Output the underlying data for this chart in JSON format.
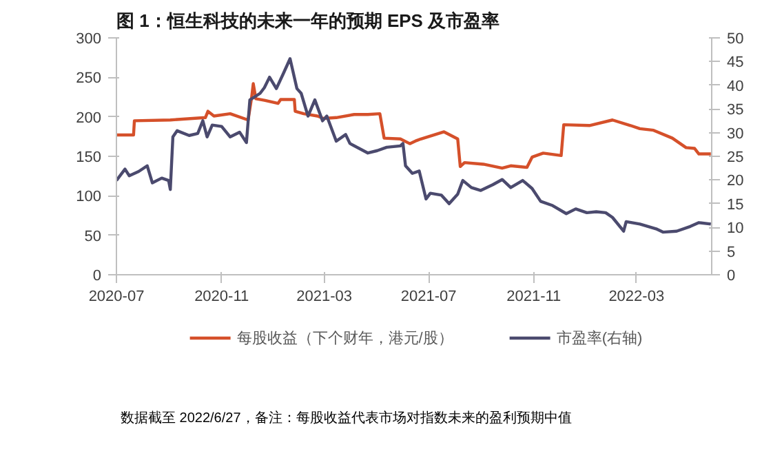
{
  "chart_data": {
    "type": "line",
    "title": "图 1：恒生科技的未来一年的预期 EPS 及市盈率",
    "annotations": [
      "数据截至 2022/6/27，备注：每股收益代表市场对指数未来的盈利预期中值"
    ],
    "xlim": [
      "2020-07-01",
      "2022-05-28"
    ],
    "xticks": [
      "2020-07",
      "2020-11",
      "2021-03",
      "2021-07",
      "2021-11",
      "2022-03"
    ],
    "ylim": [
      0,
      300
    ],
    "yticks": [
      0,
      50,
      100,
      150,
      200,
      250,
      300
    ],
    "y2lim": [
      0,
      50
    ],
    "y2ticks": [
      0,
      5,
      10,
      15,
      20,
      25,
      30,
      35,
      40,
      45,
      50
    ],
    "grid": false,
    "legend": "bottom",
    "series": [
      {
        "name": "每股收益（下个财年，港元/股）",
        "color": "#d5502a",
        "x": [
          "2020-07-01",
          "2020-07-21",
          "2020-07-22",
          "2020-09-02",
          "2020-10-13",
          "2020-10-16",
          "2020-10-23",
          "2020-11-11",
          "2020-12-02",
          "2020-12-06",
          "2020-12-08",
          "2020-12-11",
          "2020-12-21",
          "2021-01-06",
          "2021-01-09",
          "2021-01-25",
          "2021-01-26",
          "2021-02-05",
          "2021-02-21",
          "2021-02-28",
          "2021-03-15",
          "2021-04-05",
          "2021-04-21",
          "2021-05-05",
          "2021-05-10",
          "2021-05-29",
          "2021-06-09",
          "2021-06-17",
          "2021-06-22",
          "2021-07-19",
          "2021-08-04",
          "2021-08-07",
          "2021-08-12",
          "2021-09-03",
          "2021-09-25",
          "2021-10-05",
          "2021-10-24",
          "2021-10-30",
          "2021-11-12",
          "2021-12-03",
          "2021-12-06",
          "2022-01-05",
          "2022-02-01",
          "2022-02-22",
          "2022-03-05",
          "2022-03-21",
          "2022-04-12",
          "2022-04-28",
          "2022-05-08",
          "2022-05-13",
          "2022-05-27"
        ],
        "values": [
          177,
          177,
          195,
          196,
          199,
          207,
          201,
          204,
          196,
          224,
          242,
          223,
          221,
          217,
          222,
          222,
          207,
          204,
          201,
          198,
          199,
          203,
          203,
          204,
          173,
          172,
          166,
          170,
          172,
          181,
          172,
          137,
          142,
          140,
          135,
          138,
          136,
          149,
          154,
          151,
          190,
          189,
          196,
          189,
          185,
          183,
          173,
          161,
          160,
          153,
          153
        ]
      },
      {
        "name": "市盈率(右轴)",
        "color": "#4b4a6e",
        "axis": "y2",
        "x": [
          "2020-07-01",
          "2020-07-11",
          "2020-07-16",
          "2020-07-27",
          "2020-08-06",
          "2020-08-12",
          "2020-08-23",
          "2020-08-31",
          "2020-09-02",
          "2020-09-05",
          "2020-09-10",
          "2020-09-24",
          "2020-10-04",
          "2020-10-10",
          "2020-10-15",
          "2020-10-21",
          "2020-11-01",
          "2020-11-11",
          "2020-11-22",
          "2020-11-30",
          "2020-12-04",
          "2020-12-16",
          "2020-12-21",
          "2020-12-27",
          "2021-01-04",
          "2021-01-12",
          "2021-01-20",
          "2021-01-28",
          "2021-02-02",
          "2021-02-10",
          "2021-02-18",
          "2021-02-27",
          "2021-03-04",
          "2021-03-15",
          "2021-03-26",
          "2021-03-31",
          "2021-04-21",
          "2021-05-02",
          "2021-05-13",
          "2021-05-29",
          "2021-06-01",
          "2021-06-04",
          "2021-06-12",
          "2021-06-20",
          "2021-06-28",
          "2021-07-03",
          "2021-07-16",
          "2021-07-25",
          "2021-08-04",
          "2021-08-10",
          "2021-08-20",
          "2021-08-31",
          "2021-09-14",
          "2021-09-25",
          "2021-10-05",
          "2021-10-19",
          "2021-10-30",
          "2021-11-09",
          "2021-11-23",
          "2021-12-09",
          "2021-12-20",
          "2022-01-02",
          "2022-01-13",
          "2022-01-24",
          "2022-02-01",
          "2022-02-14",
          "2022-02-17",
          "2022-03-05",
          "2022-03-24",
          "2022-04-01",
          "2022-04-17",
          "2022-05-03",
          "2022-05-13",
          "2022-05-27"
        ],
        "values": [
          19.9,
          22.3,
          20.9,
          21.8,
          23.0,
          19.4,
          20.4,
          19.9,
          18.0,
          29.1,
          30.4,
          29.4,
          29.8,
          32.5,
          29.1,
          31.6,
          31.3,
          29.1,
          30.1,
          27.9,
          36.9,
          38.3,
          39.5,
          41.7,
          39.3,
          42.4,
          45.6,
          39.3,
          38.3,
          33.5,
          36.9,
          32.5,
          33.5,
          28.2,
          29.6,
          27.7,
          25.7,
          26.2,
          26.9,
          27.2,
          27.7,
          23.0,
          21.4,
          21.9,
          16.0,
          17.2,
          16.8,
          15.0,
          17.0,
          19.9,
          18.4,
          17.8,
          19.0,
          20.1,
          18.4,
          19.9,
          18.2,
          15.5,
          14.6,
          12.9,
          13.9,
          13.1,
          13.3,
          13.1,
          12.1,
          9.2,
          11.2,
          10.7,
          9.7,
          9.0,
          9.2,
          10.2,
          11.0,
          10.7
        ]
      }
    ]
  }
}
